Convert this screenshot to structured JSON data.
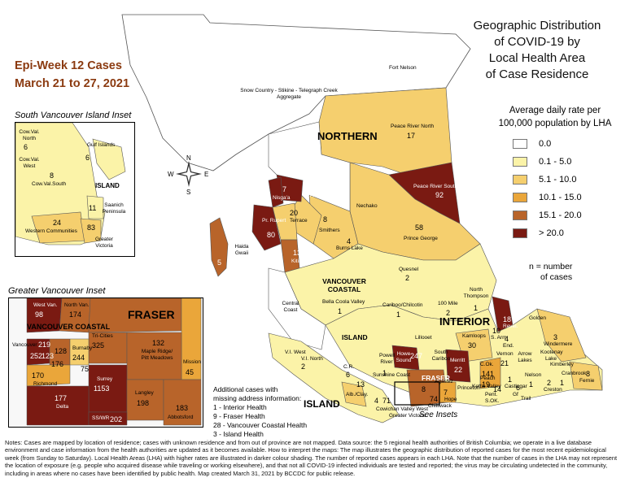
{
  "map_title": [
    "Geographic Distribution",
    "of COVID-19 by",
    "Local Health Area",
    "of Case Residence"
  ],
  "epi_week": [
    "Epi-Week 12 Cases",
    "March 21 to 27, 2021"
  ],
  "legend": {
    "title": [
      "Average daily rate per",
      "100,000 population by LHA"
    ],
    "items": [
      {
        "label": "0.0",
        "color": "#ffffff"
      },
      {
        "label": "0.1 - 5.0",
        "color": "#fbf3a8"
      },
      {
        "label": "5.1 - 10.0",
        "color": "#f5cf6e"
      },
      {
        "label": "10.1 - 15.0",
        "color": "#eaa63a"
      },
      {
        "label": "15.1 - 20.0",
        "color": "#b8642a"
      },
      {
        "label": "> 20.0",
        "color": "#7a1a12"
      }
    ],
    "n_note": [
      "n = number",
      "of cases"
    ]
  },
  "insets": {
    "south_vancouver_island": "South Vancouver Island Inset",
    "greater_vancouver": "Greater Vancouver Inset",
    "see_insets": "See Insets"
  },
  "regions": {
    "northern": "NORTHERN",
    "interior": "INTERIOR",
    "vancouver_coastal": "VANCOUVER COASTAL",
    "island": "ISLAND",
    "fraser": "FRASER",
    "island_small": "ISLAND",
    "vancouver_coastal_gv": "VANCOUVER COASTAL",
    "fraser_gv": "FRASER"
  },
  "compass": {
    "n": "N",
    "s": "S",
    "e": "E",
    "w": "W"
  },
  "map_labels": [
    {
      "name": "Fort Nelson",
      "n": ""
    },
    {
      "name": "Snow Country - Stikine - Telegraph Creek Aggregate",
      "n": ""
    },
    {
      "name": "Peace River North",
      "n": "17"
    },
    {
      "name": "Peace River South",
      "n": "92"
    },
    {
      "name": "Nechako",
      "n": ""
    },
    {
      "name": "Prince George",
      "n": "58"
    },
    {
      "name": "Upper Skeena",
      "n": "17"
    },
    {
      "name": "Nisga'a",
      "n": "7"
    },
    {
      "name": "Terrace",
      "n": "20"
    },
    {
      "name": "Smithers",
      "n": "8"
    },
    {
      "name": "Pr. Rupert",
      "n": "80"
    },
    {
      "name": "Burns Lake",
      "n": "4"
    },
    {
      "name": "Kitimat",
      "n": "13"
    },
    {
      "name": "Haida Gwaii",
      "n": "5"
    },
    {
      "name": "Quesnel",
      "n": "2"
    },
    {
      "name": "Bella Coola Valley",
      "n": "1"
    },
    {
      "name": "Central Coast",
      "n": ""
    },
    {
      "name": "Cariboo/Chilcotin",
      "n": "1"
    },
    {
      "name": "100 Mile",
      "n": "2"
    },
    {
      "name": "North Thompson",
      "n": "1"
    },
    {
      "name": "Revel.",
      "n": "18"
    },
    {
      "name": "Golden",
      "n": ""
    },
    {
      "name": "Windermere",
      "n": "3"
    },
    {
      "name": "Kamloops",
      "n": "30"
    },
    {
      "name": "S. Arm",
      "n": "10"
    },
    {
      "name": "End.",
      "n": "4"
    },
    {
      "name": "Lillooet",
      "n": ""
    },
    {
      "name": "South Cariboo",
      "n": ""
    },
    {
      "name": "Merritt",
      "n": "22"
    },
    {
      "name": "Howe Sound",
      "n": "247"
    },
    {
      "name": "C.Ok.",
      "n": "141"
    },
    {
      "name": "Vernon",
      "n": "21"
    },
    {
      "name": "Arrow Lakes",
      "n": ""
    },
    {
      "name": "Kootenay Lake",
      "n": ""
    },
    {
      "name": "Kimberley",
      "n": ""
    },
    {
      "name": "Cranbrook",
      "n": "1"
    },
    {
      "name": "Fernie",
      "n": "8"
    },
    {
      "name": "Creston",
      "n": "2"
    },
    {
      "name": "Nelson",
      "n": "1"
    },
    {
      "name": "Castlegar",
      "n": "1"
    },
    {
      "name": "Trail",
      "n": ""
    },
    {
      "name": "Kettle Valley",
      "n": ""
    },
    {
      "name": "S.OK.",
      "n": ""
    },
    {
      "name": "Princeton",
      "n": ""
    },
    {
      "name": "Hope",
      "n": "7"
    },
    {
      "name": "Chilliwack",
      "n": "74"
    },
    {
      "name": "Agassiz",
      "n": "8"
    },
    {
      "name": "V.I. West",
      "n": ""
    },
    {
      "name": "V.I. North",
      "n": "2"
    },
    {
      "name": "C.R.",
      "n": "6"
    },
    {
      "name": "Powell River",
      "n": "1"
    },
    {
      "name": "Sunshine Coast",
      "n": ""
    },
    {
      "name": "Alb./Clay.",
      "n": "13"
    },
    {
      "name": "Cowichan Valley West",
      "n": "4"
    },
    {
      "name": "Greater Victoria",
      "n": "71"
    },
    {
      "name": "Peach",
      "n": "19"
    },
    {
      "name": "Pent.",
      "n": "14"
    },
    {
      "name": "Gf",
      "n": "6"
    }
  ],
  "svi_labels": [
    {
      "name": "Cow.Val. North",
      "n": "6"
    },
    {
      "name": "Gulf Islands",
      "n": ""
    },
    {
      "name": "Cow.Val. West",
      "n": ""
    },
    {
      "name": "Cow.Val.South",
      "n": "8"
    },
    {
      "name": "ISLAND",
      "n": ""
    },
    {
      "name": "Saanich Peninsula",
      "n": "11"
    },
    {
      "name": "Western Communities",
      "n": "24"
    },
    {
      "name": "Greater Victoria",
      "n": "83"
    },
    {
      "name": "",
      "n": "6"
    }
  ],
  "gv_labels": [
    {
      "name": "West Van.",
      "n": "98"
    },
    {
      "name": "North Van.",
      "n": "174"
    },
    {
      "name": "Tri-Cities",
      "n": "325"
    },
    {
      "name": "Maple Ridge/ Pitt Meadows",
      "n": "132"
    },
    {
      "name": "Mission",
      "n": "45"
    },
    {
      "name": "Vancouver",
      "n": "252"
    },
    {
      "name": "Burnaby",
      "n": "244"
    },
    {
      "name": "Richmond",
      "n": "170"
    },
    {
      "name": "Surrey",
      "n": "1153"
    },
    {
      "name": "Langley",
      "n": "198"
    },
    {
      "name": "Delta",
      "n": "177"
    },
    {
      "name": "SS/WR",
      "n": "202"
    },
    {
      "name": "Abbotsford",
      "n": "183"
    },
    {
      "name": "",
      "n": "123"
    },
    {
      "name": "",
      "n": "128"
    },
    {
      "name": "",
      "n": "176"
    },
    {
      "name": "",
      "n": "75"
    },
    {
      "name": "",
      "n": "219"
    }
  ],
  "missing_address": [
    "Additional cases with",
    "missing address information:",
    "1 - Interior Health",
    "9 - Fraser Health",
    "28 - Vancouver Coastal Health",
    "3 - Island Health"
  ],
  "notes": "Notes: Cases are mapped by location of residence; cases with unknown residence and from out of province are not mapped. Data source: the 5 regional health authorities of British Columbia; we operate in a live database environment and case information from the health authorities are updated as it becomes available. How to interpret the maps: The map illustrates the geographic distribution of reported cases for the most recent epidemiological week (from Sunday to Saturday). Local Health Areas (LHA) with higher rates are illustrated in darker colour shading. The number of reported cases appears in each LHA. Note that the number of cases in the LHA may not represent the location of exposure (e.g. people who acquired disease while traveling or working elsewhere), and that not all COVID-19 infected individuals are tested and reported; the virus may be circulating undetected in the community, including in areas where no cases have been identified by public health. Map created March 31, 2021 by BCCDC for public release."
}
